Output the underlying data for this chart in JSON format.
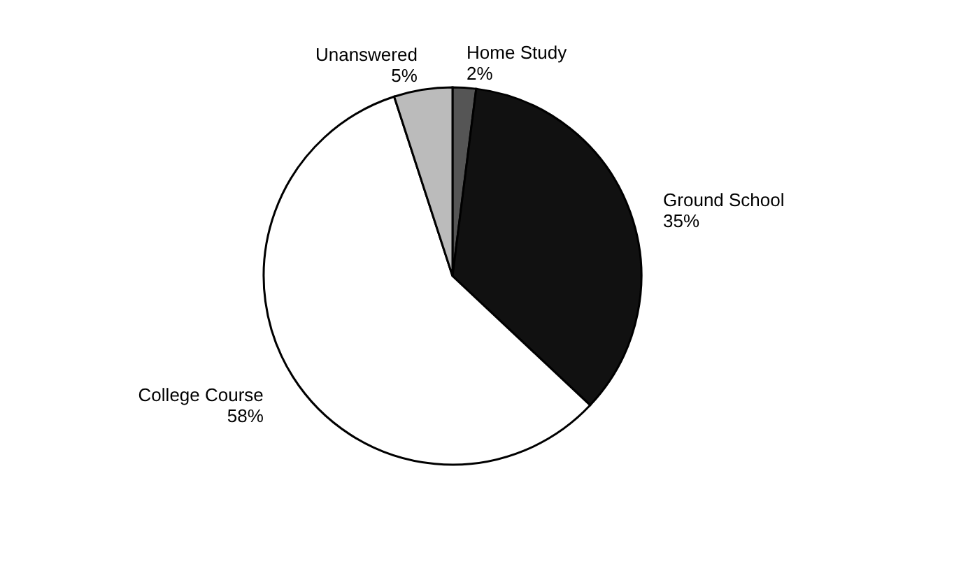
{
  "chart_data": {
    "type": "pie",
    "categories": [
      "Home Study",
      "Ground School",
      "College Course",
      "Unanswered"
    ],
    "values": [
      2,
      35,
      58,
      5
    ],
    "value_labels": [
      "2%",
      "35%",
      "58%",
      "5%"
    ],
    "colors": [
      "#555555",
      "#111111",
      "#ffffff",
      "#bbbbbb"
    ],
    "legend": false
  }
}
